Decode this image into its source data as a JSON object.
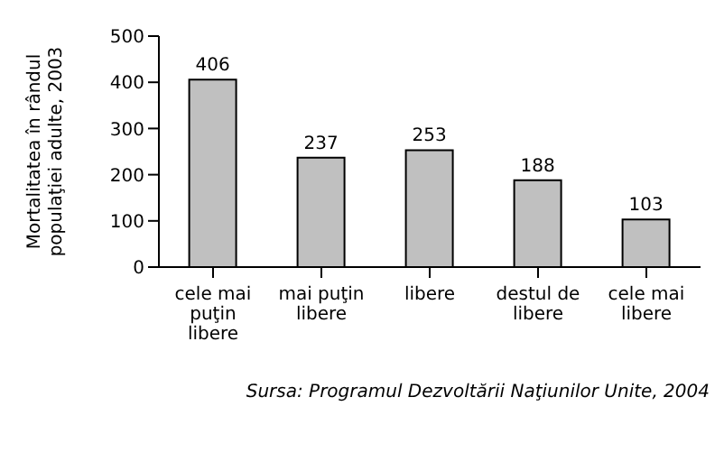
{
  "chart_data": {
    "type": "bar",
    "ylabel": "Mortalitatea în rândul populaţiei adulte, 2003",
    "categories": [
      "cele mai puţin libere",
      "mai puţin libere",
      "libere",
      "destul de libere",
      "cele mai libere"
    ],
    "values": [
      406,
      237,
      253,
      188,
      103
    ],
    "color": "#c0c0c0",
    "ylim": [
      0,
      500
    ],
    "yticks": [
      0,
      100,
      200,
      300,
      400,
      500
    ],
    "grid": false,
    "data_labels": true,
    "annotations": [
      "Sursa: Programul Dezvoltării Naţiunilor Unite, 2004"
    ]
  }
}
